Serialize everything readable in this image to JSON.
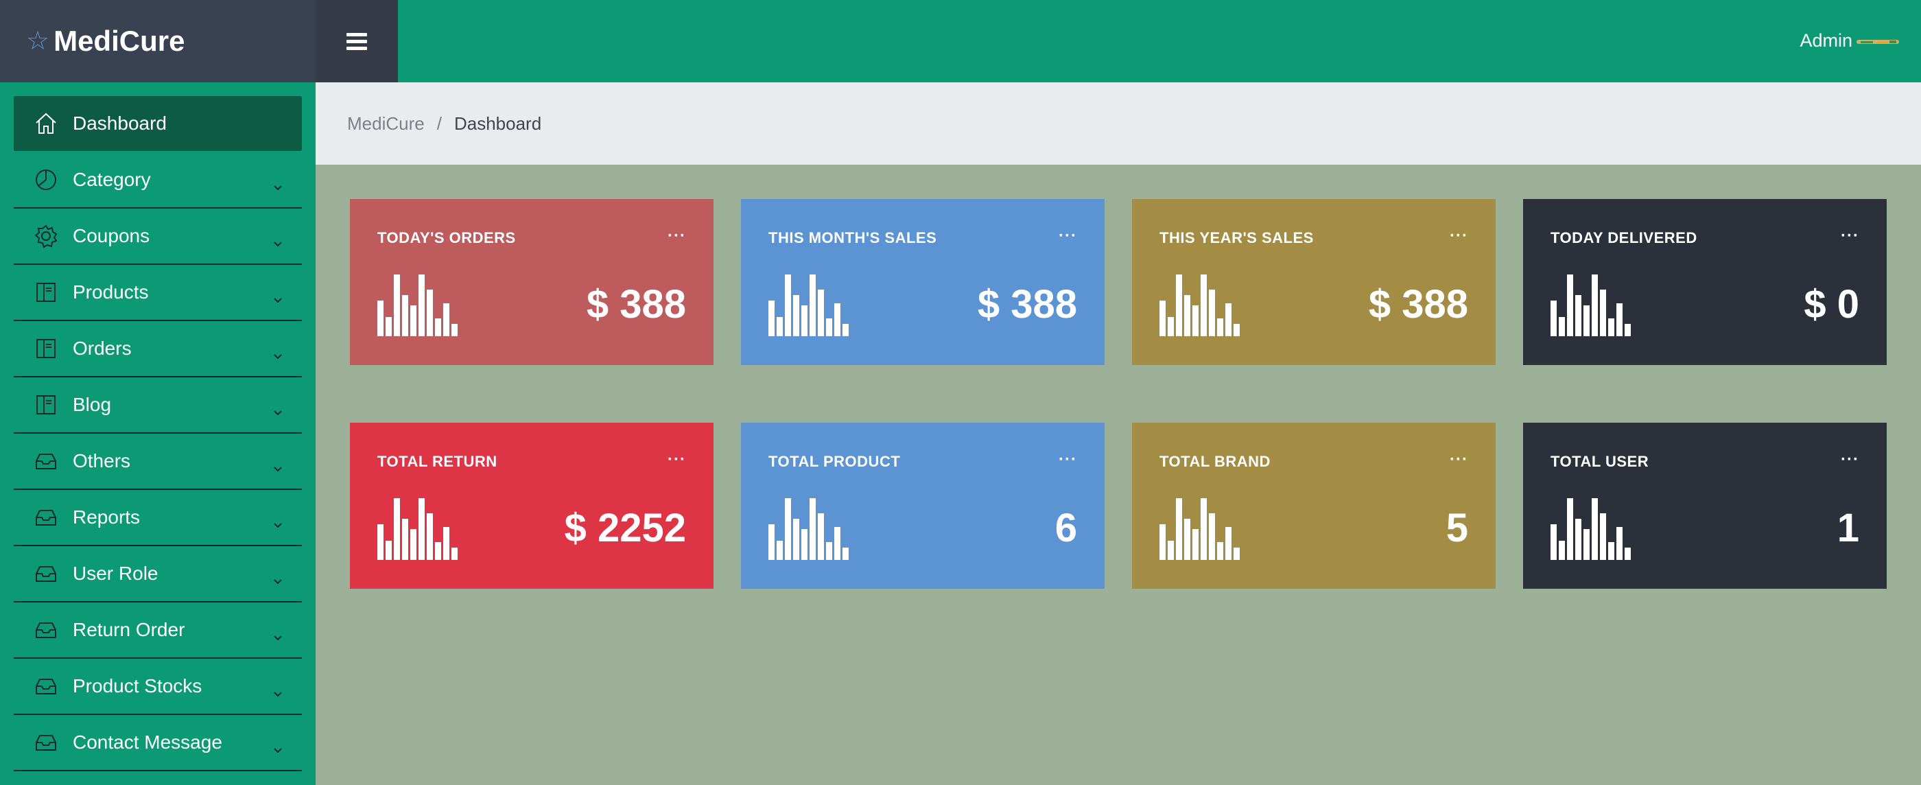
{
  "header": {
    "brand": "MediCure",
    "admin_label": "Admin"
  },
  "colors": {
    "sidebar": "#0b9a74",
    "topbar": "#0b9a74",
    "brand_bg": "#3a4150",
    "content_bg": "#9bb097"
  },
  "breadcrumb": {
    "root": "MediCure",
    "separator": "/",
    "current": "Dashboard"
  },
  "sidebar": {
    "items": [
      {
        "label": "Dashboard",
        "icon": "home-icon",
        "active": true
      },
      {
        "label": "Category",
        "icon": "pie-chart-icon"
      },
      {
        "label": "Coupons",
        "icon": "gear-icon"
      },
      {
        "label": "Products",
        "icon": "book-icon"
      },
      {
        "label": "Orders",
        "icon": "book-icon"
      },
      {
        "label": "Blog",
        "icon": "book-icon"
      },
      {
        "label": "Others",
        "icon": "inbox-icon"
      },
      {
        "label": "Reports",
        "icon": "inbox-icon"
      },
      {
        "label": "User Role",
        "icon": "inbox-icon"
      },
      {
        "label": "Return Order",
        "icon": "inbox-icon"
      },
      {
        "label": "Product Stocks",
        "icon": "inbox-icon"
      },
      {
        "label": "Contact Message",
        "icon": "inbox-icon"
      }
    ]
  },
  "cards": [
    {
      "title": "TODAY'S ORDERS",
      "value": "$ 388",
      "menu": "···",
      "color": "#be5b5c"
    },
    {
      "title": "THIS MONTH'S SALES",
      "value": "$ 388",
      "menu": "···",
      "color": "#5b93d3"
    },
    {
      "title": "THIS YEAR'S SALES",
      "value": "$ 388",
      "menu": "···",
      "color": "#a38c44"
    },
    {
      "title": "TODAY DELIVERED",
      "value": "$ 0",
      "menu": "···",
      "color": "#2b303b"
    },
    {
      "title": "TOTAL RETURN",
      "value": "$ 2252",
      "menu": "···",
      "color": "#dd3446"
    },
    {
      "title": "TOTAL PRODUCT",
      "value": "6",
      "menu": "···",
      "color": "#5b93d3"
    },
    {
      "title": "TOTAL BRAND",
      "value": "5",
      "menu": "···",
      "color": "#a38c44"
    },
    {
      "title": "TOTAL USER",
      "value": "1",
      "menu": "···",
      "color": "#2b303b"
    }
  ]
}
